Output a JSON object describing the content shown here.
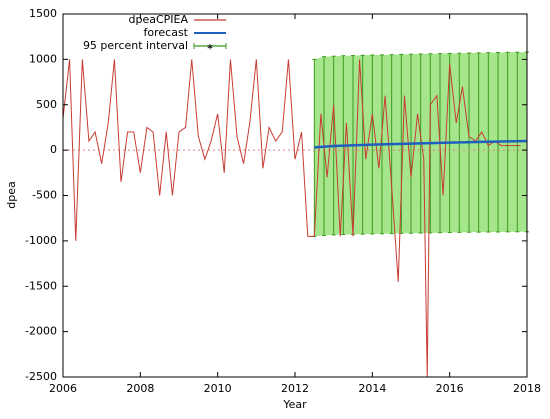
{
  "chart_data": {
    "type": "line",
    "xlabel": "Year",
    "ylabel": "dpea",
    "xlim": [
      2006,
      2018
    ],
    "xticks": [
      2006,
      2008,
      2010,
      2012,
      2014,
      2016,
      2018
    ],
    "ylim": [
      -2500,
      1500
    ],
    "yticks": [
      -2500,
      -2000,
      -1500,
      -1000,
      -500,
      0,
      500,
      1000,
      1500
    ],
    "series": [
      {
        "name": "dpeaCPIEA",
        "color": "#c83c32",
        "x": [
          2006.0,
          2006.17,
          2006.33,
          2006.5,
          2006.67,
          2006.83,
          2007.0,
          2007.17,
          2007.33,
          2007.5,
          2007.67,
          2007.83,
          2008.0,
          2008.17,
          2008.33,
          2008.5,
          2008.67,
          2008.83,
          2009.0,
          2009.17,
          2009.33,
          2009.5,
          2009.67,
          2009.83,
          2010.0,
          2010.17,
          2010.33,
          2010.5,
          2010.67,
          2010.83,
          2011.0,
          2011.17,
          2011.33,
          2011.5,
          2011.67,
          2011.83,
          2012.0,
          2012.17,
          2012.33,
          2012.5,
          2012.67,
          2012.83,
          2013.0,
          2013.17,
          2013.33,
          2013.5,
          2013.67,
          2013.83,
          2014.0,
          2014.17,
          2014.33,
          2014.5,
          2014.67,
          2014.83,
          2015.0,
          2015.17,
          2015.33,
          2015.42,
          2015.5,
          2015.67,
          2015.83,
          2016.0,
          2016.17,
          2016.33,
          2016.5,
          2016.67,
          2016.83,
          2017.0,
          2017.17,
          2017.33,
          2017.5,
          2017.67,
          2017.83
        ],
        "values": [
          350,
          1000,
          -1000,
          1000,
          100,
          200,
          -150,
          300,
          1000,
          -350,
          200,
          200,
          -250,
          250,
          200,
          -500,
          200,
          -500,
          200,
          250,
          1000,
          150,
          -100,
          100,
          400,
          -250,
          1000,
          150,
          -150,
          300,
          1000,
          -200,
          250,
          100,
          200,
          1000,
          -100,
          200,
          -950,
          -950,
          400,
          -300,
          500,
          -950,
          300,
          -950,
          1000,
          -100,
          400,
          -200,
          600,
          -400,
          -1450,
          600,
          -300,
          400,
          -100,
          -2500,
          500,
          600,
          -500,
          950,
          300,
          700,
          150,
          100,
          200,
          50,
          100,
          50,
          50,
          50,
          50
        ]
      },
      {
        "name": "forecast",
        "color": "#1f5fbf",
        "x": [
          2012.5,
          2013.0,
          2014.0,
          2015.0,
          2016.0,
          2017.0,
          2018.0
        ],
        "values": [
          30,
          45,
          60,
          72,
          82,
          92,
          100
        ]
      },
      {
        "name": "95 percent interval",
        "color": "#3c9a1e",
        "fill": "#8fe070",
        "x": [
          2012.5,
          2012.75,
          2013.0,
          2013.25,
          2013.5,
          2013.75,
          2014.0,
          2014.25,
          2014.5,
          2014.75,
          2015.0,
          2015.25,
          2015.5,
          2015.75,
          2016.0,
          2016.25,
          2016.5,
          2016.75,
          2017.0,
          2017.25,
          2017.5,
          2017.75,
          2018.0
        ],
        "lower": [
          -950,
          -940,
          -935,
          -930,
          -928,
          -926,
          -924,
          -922,
          -920,
          -918,
          -916,
          -914,
          -912,
          -910,
          -908,
          -906,
          -905,
          -904,
          -903,
          -902,
          -901,
          -900,
          -900
        ],
        "upper": [
          1000,
          1030,
          1035,
          1040,
          1042,
          1045,
          1048,
          1050,
          1052,
          1055,
          1057,
          1060,
          1062,
          1064,
          1066,
          1068,
          1070,
          1072,
          1074,
          1076,
          1078,
          1079,
          1080
        ]
      }
    ]
  }
}
